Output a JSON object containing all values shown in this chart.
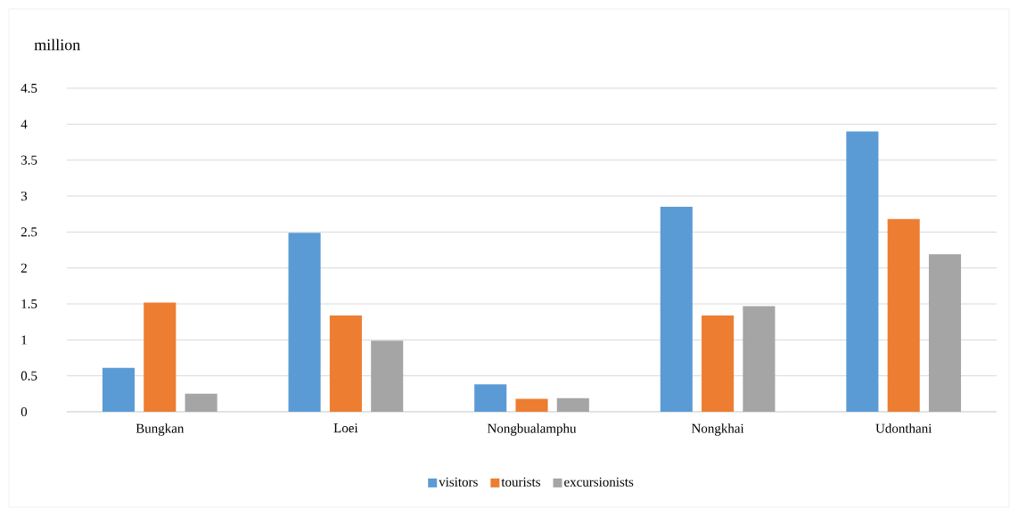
{
  "chart_data": {
    "type": "bar",
    "ylabel": "million",
    "categories": [
      "Bungkan",
      "Loei",
      "Nongbualamphu",
      "Nongkhai",
      "Udonthani"
    ],
    "series": [
      {
        "name": "visitors",
        "color": "#5b9bd5",
        "values": [
          0.61,
          2.49,
          0.38,
          2.85,
          3.9
        ]
      },
      {
        "name": "tourists",
        "color": "#ed7d31",
        "values": [
          1.52,
          1.34,
          0.18,
          1.34,
          2.68
        ]
      },
      {
        "name": "excursionists",
        "color": "#a5a5a5",
        "values": [
          0.25,
          0.99,
          0.19,
          1.47,
          2.19
        ]
      }
    ],
    "ylim": [
      0,
      4.5
    ],
    "yticks": [
      0,
      0.5,
      1,
      1.5,
      2,
      2.5,
      3,
      3.5,
      4,
      4.5
    ],
    "grid": "y",
    "legend": "bottom"
  }
}
